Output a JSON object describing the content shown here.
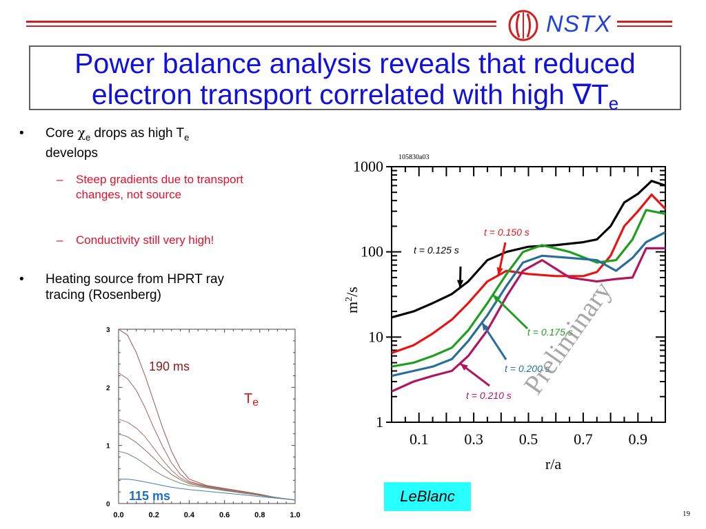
{
  "header": {
    "logo_text": "NSTX",
    "accent_color": "#d21e1e",
    "logo_color": "#1f43d8"
  },
  "title": {
    "line1": "Power balance analysis reveals that reduced",
    "line2_main": "electron transport correlated with high ",
    "line2_symbol": "∇",
    "line2_var": "T",
    "line2_sub": "e"
  },
  "bullets": [
    {
      "symbol": "•",
      "text_a": "Core ",
      "chi": "χ",
      "chi_sub": "e",
      "text_b": " drops as high T",
      "te_sub": "e",
      "text_c": "develops",
      "sub_items": [
        {
          "dash": "–",
          "text": "Steep gradients due to transport changes, not source"
        },
        {
          "dash": "–",
          "text": "Conductivity still very high!"
        }
      ]
    },
    {
      "symbol": "•",
      "text": "Heating source from HPRT ray tracing (Rosenberg)"
    }
  ],
  "chart_data": [
    {
      "type": "line",
      "id_label": "105830a03",
      "xlabel": "r/a",
      "ylabel": "m²/s",
      "ylabel_main": "m",
      "ylabel_sup": "2",
      "ylabel_tail": "/s",
      "yscale": "log",
      "xlim": [
        0.0,
        1.0
      ],
      "ylim": [
        1,
        1000
      ],
      "x_tick_labels": [
        "0.1",
        "0.3",
        "0.5",
        "0.7",
        "0.9"
      ],
      "x_ticks": [
        0.1,
        0.3,
        0.5,
        0.7,
        0.9
      ],
      "y_tick_labels": [
        "1",
        "10",
        "100",
        "1000"
      ],
      "y_ticks": [
        1,
        10,
        100,
        1000
      ],
      "watermark": "Preliminary",
      "series": [
        {
          "name": "t = 0.125 s",
          "color": "#000000",
          "x": [
            0.0,
            0.08,
            0.15,
            0.22,
            0.28,
            0.35,
            0.42,
            0.5,
            0.6,
            0.7,
            0.75,
            0.8,
            0.85,
            0.9,
            0.95,
            1.0
          ],
          "y": [
            17,
            20,
            25,
            32,
            45,
            80,
            100,
            115,
            120,
            130,
            140,
            200,
            380,
            480,
            680,
            600
          ]
        },
        {
          "name": "t = 0.150 s",
          "color": "#e81414",
          "x": [
            0.0,
            0.08,
            0.15,
            0.22,
            0.28,
            0.35,
            0.42,
            0.5,
            0.6,
            0.7,
            0.75,
            0.8,
            0.85,
            0.9,
            0.95,
            1.0
          ],
          "y": [
            6.5,
            8,
            11,
            16,
            25,
            45,
            60,
            55,
            52,
            52,
            58,
            90,
            200,
            300,
            470,
            320
          ]
        },
        {
          "name": "t = 0.175 s",
          "color": "#1e9e1e",
          "x": [
            0.0,
            0.08,
            0.15,
            0.22,
            0.28,
            0.35,
            0.42,
            0.48,
            0.55,
            0.65,
            0.75,
            0.82,
            0.88,
            0.93,
            1.0
          ],
          "y": [
            4.5,
            5,
            6,
            7.5,
            12,
            25,
            55,
            100,
            120,
            100,
            75,
            80,
            140,
            310,
            280
          ]
        },
        {
          "name": "t = 0.200 s",
          "color": "#286e9a",
          "x": [
            0.0,
            0.08,
            0.15,
            0.22,
            0.28,
            0.35,
            0.42,
            0.48,
            0.55,
            0.65,
            0.75,
            0.82,
            0.88,
            0.93,
            1.0
          ],
          "y": [
            3.5,
            4,
            4.5,
            5.5,
            9,
            18,
            40,
            75,
            90,
            85,
            80,
            60,
            85,
            130,
            170
          ]
        },
        {
          "name": "t = 0.210 s",
          "color": "#b0155e",
          "x": [
            0.0,
            0.08,
            0.15,
            0.22,
            0.28,
            0.35,
            0.42,
            0.48,
            0.55,
            0.65,
            0.75,
            0.82,
            0.88,
            0.93,
            1.0
          ],
          "y": [
            2.3,
            3,
            3.5,
            4,
            6,
            12,
            30,
            60,
            80,
            50,
            45,
            48,
            50,
            110,
            110
          ]
        }
      ]
    },
    {
      "type": "line",
      "xlim": [
        0.0,
        1.0
      ],
      "ylim": [
        0,
        3
      ],
      "x_ticks": [
        0.0,
        0.2,
        0.4,
        0.6,
        0.8,
        1.0
      ],
      "x_tick_labels": [
        "0.0",
        "0.2",
        "0.4",
        "0.6",
        "0.8",
        "1.0"
      ],
      "y_ticks": [
        0,
        1,
        2,
        3
      ],
      "y_tick_labels": [
        "0",
        "1",
        "2",
        "3"
      ],
      "label_top": "190 ms",
      "label_bottom": "115 ms",
      "label_var": "T",
      "label_var_sub": "e",
      "label_top_color": "#8b1a1a",
      "label_bottom_color": "#1e6ec8",
      "label_var_color": "#e01010",
      "series": [
        {
          "color": "#a05050",
          "x": [
            0,
            0.05,
            0.1,
            0.15,
            0.2,
            0.25,
            0.3,
            0.35,
            0.4,
            0.5,
            0.6,
            0.7,
            0.8,
            0.9,
            1.0
          ],
          "y": [
            3.0,
            2.9,
            2.6,
            2.2,
            1.75,
            1.3,
            0.9,
            0.6,
            0.42,
            0.31,
            0.26,
            0.21,
            0.16,
            0.1,
            0.06
          ]
        },
        {
          "color": "#a06060",
          "x": [
            0,
            0.05,
            0.1,
            0.15,
            0.2,
            0.25,
            0.3,
            0.35,
            0.4,
            0.5,
            0.6,
            0.7,
            0.8,
            0.9,
            1.0
          ],
          "y": [
            2.25,
            2.15,
            1.95,
            1.65,
            1.3,
            0.98,
            0.7,
            0.5,
            0.38,
            0.3,
            0.25,
            0.2,
            0.15,
            0.1,
            0.06
          ]
        },
        {
          "color": "#b07070",
          "x": [
            0,
            0.05,
            0.1,
            0.15,
            0.2,
            0.25,
            0.3,
            0.35,
            0.4,
            0.5,
            0.6,
            0.7,
            0.8,
            0.9,
            1.0
          ],
          "y": [
            1.45,
            1.4,
            1.3,
            1.15,
            0.95,
            0.75,
            0.57,
            0.44,
            0.36,
            0.29,
            0.24,
            0.19,
            0.14,
            0.1,
            0.06
          ]
        },
        {
          "color": "#907060",
          "x": [
            0,
            0.05,
            0.1,
            0.15,
            0.2,
            0.25,
            0.3,
            0.35,
            0.4,
            0.5,
            0.6,
            0.7,
            0.8,
            0.9,
            1.0
          ],
          "y": [
            1.2,
            1.15,
            1.05,
            0.92,
            0.78,
            0.63,
            0.5,
            0.41,
            0.34,
            0.28,
            0.23,
            0.18,
            0.14,
            0.1,
            0.06
          ]
        },
        {
          "color": "#709070",
          "x": [
            0,
            0.05,
            0.1,
            0.15,
            0.2,
            0.25,
            0.3,
            0.35,
            0.4,
            0.5,
            0.6,
            0.7,
            0.8,
            0.9,
            1.0
          ],
          "y": [
            0.9,
            0.86,
            0.78,
            0.68,
            0.57,
            0.48,
            0.41,
            0.35,
            0.31,
            0.27,
            0.22,
            0.18,
            0.14,
            0.1,
            0.06
          ]
        },
        {
          "color": "#4a7aaa",
          "x": [
            0,
            0.05,
            0.1,
            0.15,
            0.2,
            0.25,
            0.3,
            0.35,
            0.4,
            0.5,
            0.6,
            0.7,
            0.8,
            0.9,
            1.0
          ],
          "y": [
            0.42,
            0.42,
            0.4,
            0.37,
            0.34,
            0.31,
            0.28,
            0.26,
            0.24,
            0.21,
            0.18,
            0.15,
            0.12,
            0.09,
            0.06
          ]
        }
      ]
    }
  ],
  "footer": {
    "badge": "LeBlanc",
    "page_number": "19"
  }
}
